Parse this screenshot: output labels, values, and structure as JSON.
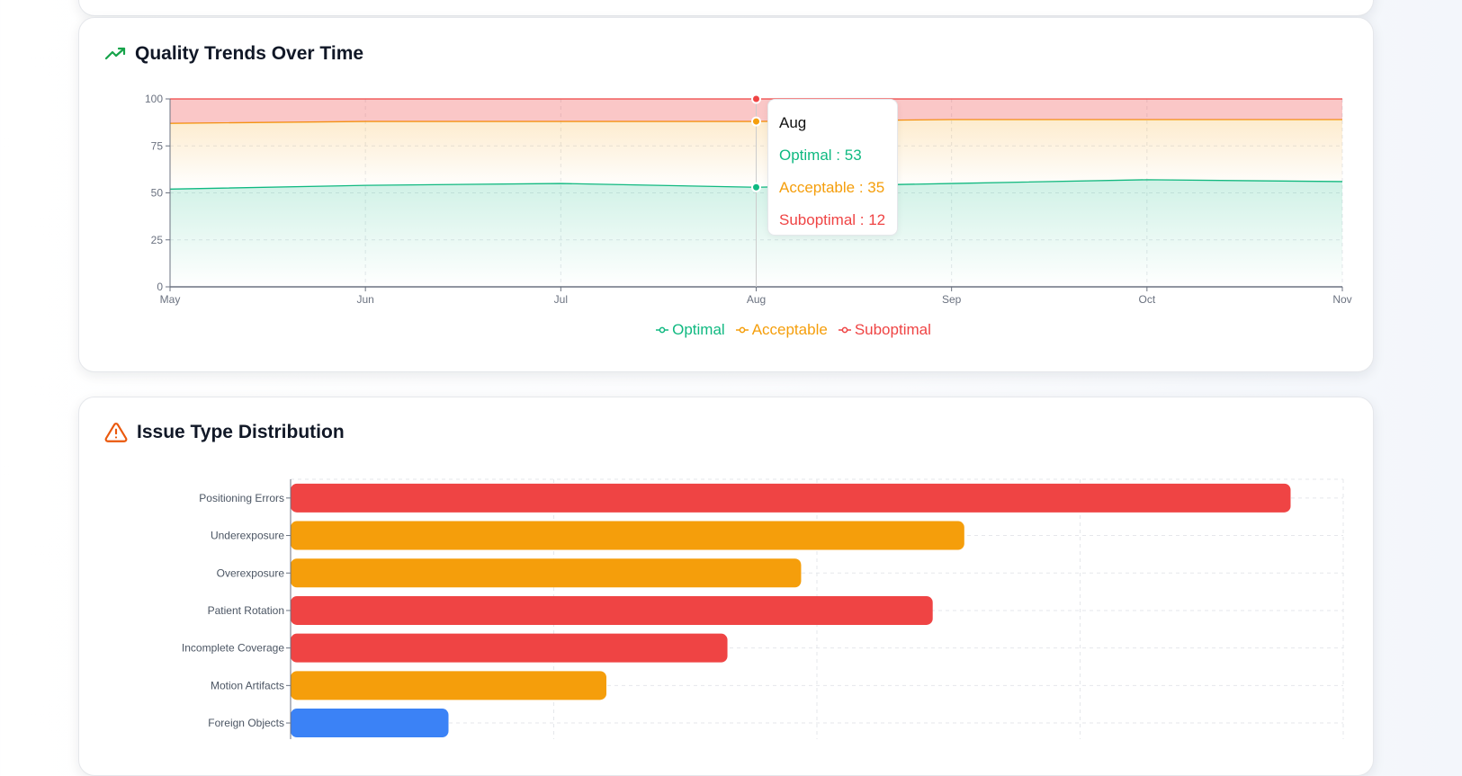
{
  "trend_card": {
    "title": "Quality Trends Over Time",
    "icon": "trending-up-icon",
    "tooltip": {
      "label": "Aug",
      "rows": [
        {
          "name": "Optimal",
          "text": "Optimal : 53"
        },
        {
          "name": "Acceptable",
          "text": "Acceptable : 35"
        },
        {
          "name": "Suboptimal",
          "text": "Suboptimal : 12"
        }
      ]
    }
  },
  "issue_card": {
    "title": "Issue Type Distribution",
    "icon": "warning-triangle-icon"
  },
  "colors": {
    "optimal": "#10b981",
    "acceptable": "#f59e0b",
    "suboptimal": "#ef4444",
    "blue": "#3b82f6"
  },
  "chart_data": [
    {
      "type": "area",
      "stacked": true,
      "categories": [
        "May",
        "Jun",
        "Jul",
        "Aug",
        "Sep",
        "Oct",
        "Nov"
      ],
      "ylim": [
        0,
        100
      ],
      "yticks": [
        "0",
        "25",
        "50",
        "75",
        "100"
      ],
      "grid": true,
      "legend": "bottom",
      "active_category": "Aug",
      "series": [
        {
          "name": "Optimal",
          "color": "#10b981",
          "values": [
            52,
            54,
            55,
            53,
            55,
            57,
            56
          ]
        },
        {
          "name": "Acceptable",
          "color": "#f59e0b",
          "values": [
            35,
            34,
            33,
            35,
            34,
            32,
            33
          ]
        },
        {
          "name": "Suboptimal",
          "color": "#ef4444",
          "values": [
            13,
            12,
            12,
            12,
            11,
            11,
            11
          ]
        }
      ]
    },
    {
      "type": "bar",
      "orientation": "horizontal",
      "grid": true,
      "xlim": [
        0,
        100
      ],
      "categories": [
        "Positioning Errors",
        "Underexposure",
        "Overexposure",
        "Patient Rotation",
        "Incomplete Coverage",
        "Motion Artifacts",
        "Foreign Objects"
      ],
      "values": [
        95,
        64,
        48.5,
        61,
        41.5,
        30,
        15
      ],
      "colors": [
        "#ef4444",
        "#f59e0b",
        "#f59e0b",
        "#ef4444",
        "#ef4444",
        "#f59e0b",
        "#3b82f6"
      ]
    }
  ]
}
